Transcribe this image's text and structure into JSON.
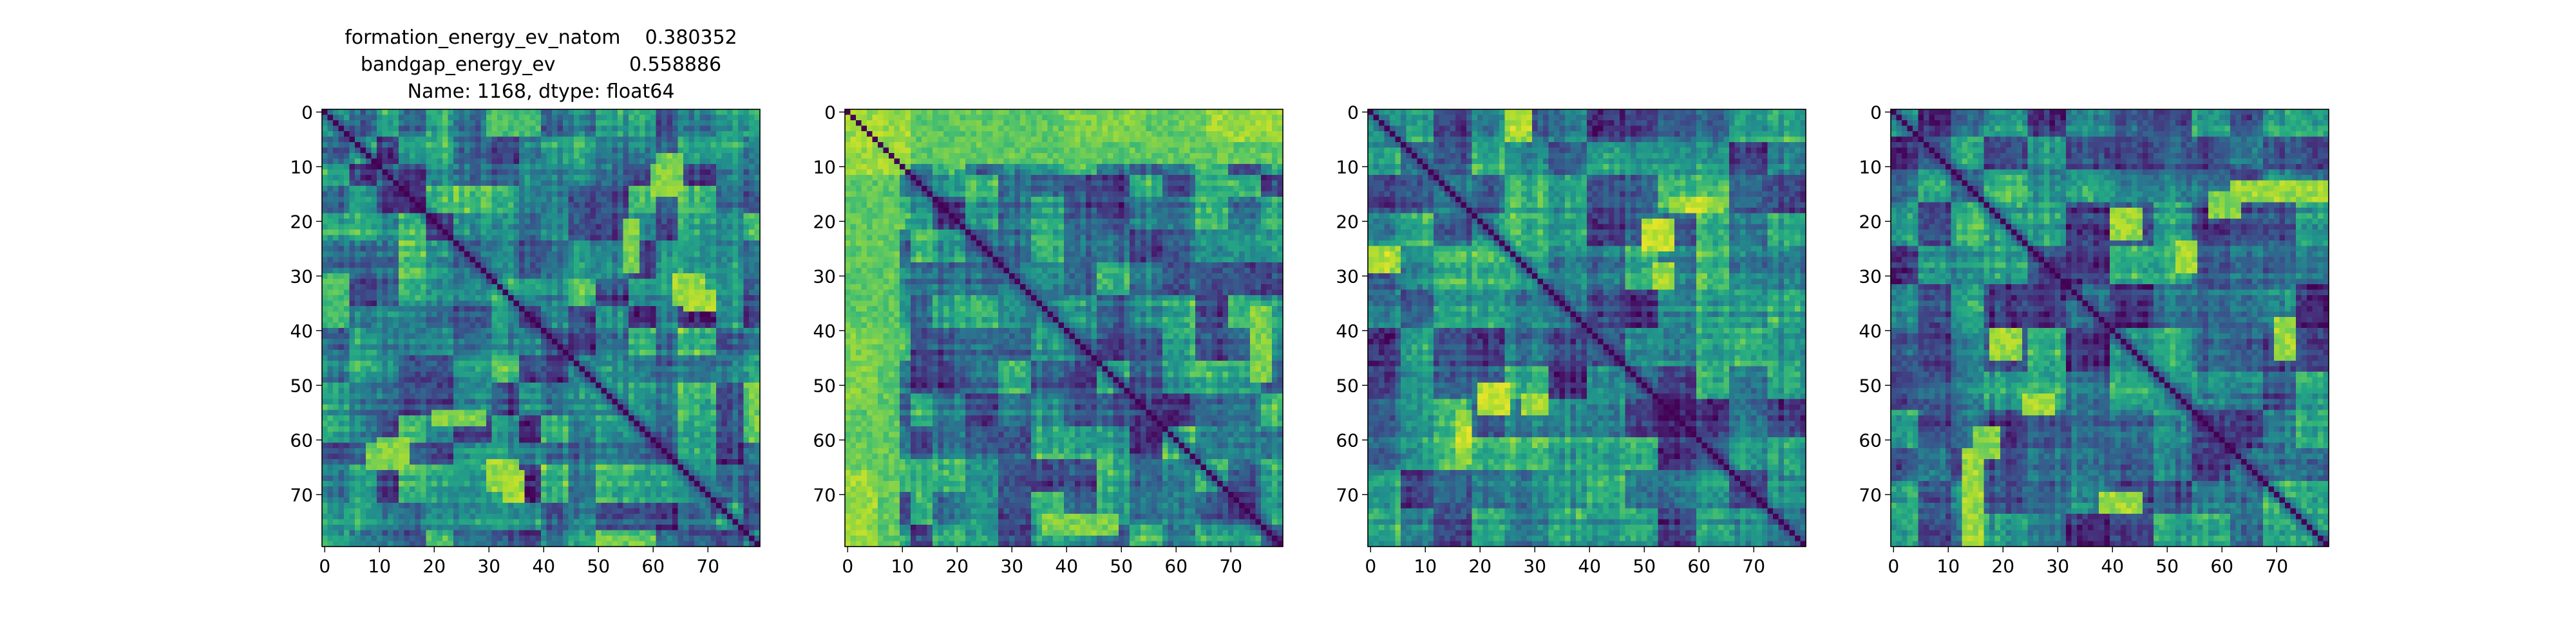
{
  "figure": {
    "title_lines": [
      "formation_energy_ev_natom    0.380352",
      "bandgap_energy_ev            0.558886",
      "Name: 1168, dtype: float64"
    ]
  },
  "chart_data": [
    {
      "type": "heatmap",
      "colormap": "viridis",
      "size": 80,
      "diagonal": 0,
      "xlim": [
        0,
        79
      ],
      "ylim": [
        79,
        0
      ],
      "xticks": [
        0,
        10,
        20,
        30,
        40,
        50,
        60,
        70
      ],
      "yticks": [
        0,
        10,
        20,
        30,
        40,
        50,
        60,
        70
      ],
      "block_boundaries": [
        5,
        10,
        14,
        19,
        24,
        31,
        36,
        40,
        45,
        50,
        56,
        61,
        65,
        72,
        77
      ],
      "bright_regions": [
        {
          "rows": [
            33,
            37
          ],
          "cols": [
            66,
            72
          ],
          "level": 0.85
        },
        {
          "rows": [
            55,
            58
          ],
          "cols": [
            20,
            30
          ],
          "level": 0.8
        },
        {
          "rows": [
            60,
            64
          ],
          "cols": [
            10,
            16
          ],
          "level": 0.8
        },
        {
          "rows": [
            64,
            70
          ],
          "cols": [
            30,
            36
          ],
          "level": 0.85
        },
        {
          "rows": [
            8,
            16
          ],
          "cols": [
            61,
            66
          ],
          "level": 0.8
        },
        {
          "rows": [
            0,
            5
          ],
          "cols": [
            30,
            40
          ],
          "level": 0.7
        }
      ]
    },
    {
      "type": "heatmap",
      "colormap": "viridis",
      "size": 80,
      "diagonal": 0,
      "xlim": [
        0,
        79
      ],
      "ylim": [
        79,
        0
      ],
      "xticks": [
        0,
        10,
        20,
        30,
        40,
        50,
        60,
        70
      ],
      "yticks": [
        0,
        10,
        20,
        30,
        40,
        50,
        60,
        70
      ],
      "block_boundaries": [
        2,
        4,
        6,
        8,
        10,
        12,
        16,
        22,
        28,
        34,
        40,
        46,
        52,
        58,
        64,
        70,
        76
      ],
      "bright_regions": [
        {
          "rows": [
            0,
            12
          ],
          "cols": [
            0,
            12
          ],
          "level": 0.85
        },
        {
          "rows": [
            0,
            6
          ],
          "cols": [
            40,
            55
          ],
          "level": 0.8
        },
        {
          "rows": [
            0,
            6
          ],
          "cols": [
            66,
            80
          ],
          "level": 0.85
        },
        {
          "rows": [
            12,
            80
          ],
          "cols": [
            0,
            10
          ],
          "level": 0.75
        },
        {
          "rows": [
            74,
            78
          ],
          "cols": [
            36,
            50
          ],
          "level": 0.8
        }
      ]
    },
    {
      "type": "heatmap",
      "colormap": "viridis",
      "size": 80,
      "diagonal": 0,
      "xlim": [
        0,
        79
      ],
      "ylim": [
        79,
        0
      ],
      "xticks": [
        0,
        10,
        20,
        30,
        40,
        50,
        60,
        70
      ],
      "yticks": [
        0,
        10,
        20,
        30,
        40,
        50,
        60,
        70
      ],
      "block_boundaries": [
        6,
        12,
        19,
        25,
        33,
        40,
        47,
        53,
        60,
        66,
        73
      ],
      "bright_regions": [
        {
          "rows": [
            0,
            4
          ],
          "cols": [
            26,
            30
          ],
          "level": 0.9
        },
        {
          "rows": [
            25,
            30
          ],
          "cols": [
            0,
            6
          ],
          "level": 0.85
        },
        {
          "rows": [
            16,
            19
          ],
          "cols": [
            55,
            65
          ],
          "level": 0.85
        },
        {
          "rows": [
            50,
            56
          ],
          "cols": [
            20,
            26
          ],
          "level": 0.9
        },
        {
          "rows": [
            58,
            62
          ],
          "cols": [
            16,
            19
          ],
          "level": 0.9
        },
        {
          "rows": [
            28,
            33
          ],
          "cols": [
            52,
            56
          ],
          "level": 0.85
        }
      ]
    },
    {
      "type": "heatmap",
      "colormap": "viridis",
      "size": 80,
      "diagonal": 0,
      "xlim": [
        0,
        79
      ],
      "ylim": [
        79,
        0
      ],
      "xticks": [
        0,
        10,
        20,
        30,
        40,
        50,
        60,
        70
      ],
      "yticks": [
        0,
        10,
        20,
        30,
        40,
        50,
        60,
        70
      ],
      "block_boundaries": [
        5,
        11,
        17,
        25,
        32,
        40,
        48,
        55,
        62,
        68,
        74
      ],
      "bright_regions": [
        {
          "rows": [
            13,
            17
          ],
          "cols": [
            62,
            80
          ],
          "level": 0.85
        },
        {
          "rows": [
            40,
            46
          ],
          "cols": [
            18,
            24
          ],
          "level": 0.85
        },
        {
          "rows": [
            58,
            64
          ],
          "cols": [
            15,
            20
          ],
          "level": 0.8
        },
        {
          "rows": [
            38,
            46
          ],
          "cols": [
            70,
            74
          ],
          "level": 0.85
        },
        {
          "rows": [
            24,
            30
          ],
          "cols": [
            52,
            56
          ],
          "level": 0.85
        }
      ]
    }
  ]
}
